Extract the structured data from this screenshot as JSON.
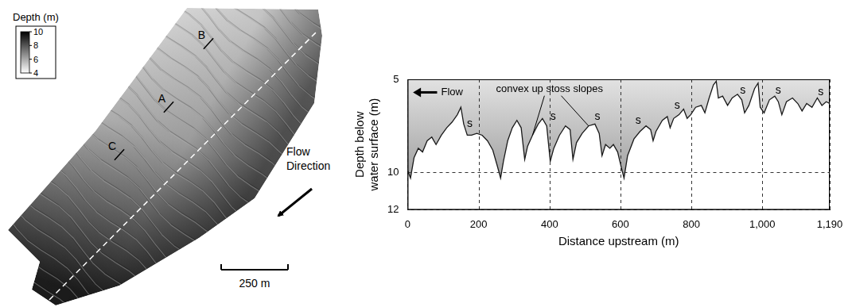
{
  "map": {
    "colorbar": {
      "title": "Depth (m)",
      "range": [
        4,
        10
      ],
      "ticks": [
        10,
        8,
        6,
        4
      ]
    },
    "transects": [
      "A",
      "B",
      "C"
    ],
    "flow_label": "Flow Direction",
    "scale_bar": "250 m"
  },
  "chart_data": {
    "type": "line",
    "x_label": "Distance upstream (m)",
    "y_label": "Depth below water surface (m)",
    "x": [
      0,
      8,
      18,
      30,
      42,
      55,
      68,
      80,
      95,
      110,
      125,
      140,
      150,
      158,
      168,
      180,
      195,
      210,
      225,
      240,
      252,
      262,
      270,
      282,
      295,
      308,
      320,
      330,
      338,
      352,
      368,
      380,
      392,
      402,
      412,
      428,
      445,
      458,
      466,
      476,
      492,
      510,
      528,
      540,
      548,
      558,
      570,
      580,
      592,
      602,
      610,
      620,
      638,
      655,
      672,
      685,
      692,
      700,
      718,
      732,
      740,
      750,
      765,
      778,
      788,
      798,
      812,
      828,
      838,
      850,
      862,
      870,
      876,
      888,
      902,
      915,
      930,
      942,
      950,
      962,
      978,
      988,
      994,
      1005,
      1020,
      1035,
      1045,
      1055,
      1068,
      1085,
      1100,
      1112,
      1125,
      1140,
      1155,
      1168,
      1180,
      1190
    ],
    "values": [
      9.9,
      10.3,
      9.2,
      8.7,
      8.9,
      8.3,
      8.1,
      8.5,
      8.0,
      7.6,
      7.3,
      6.9,
      6.5,
      7.4,
      8.0,
      8.0,
      7.9,
      8.0,
      8.3,
      8.8,
      9.6,
      10.3,
      9.4,
      8.3,
      7.6,
      7.2,
      7.6,
      9.3,
      8.6,
      8.0,
      7.4,
      7.1,
      7.5,
      9.4,
      8.7,
      8.0,
      7.5,
      7.7,
      9.3,
      8.4,
      7.9,
      7.5,
      7.4,
      7.9,
      9.1,
      8.5,
      8.7,
      8.5,
      8.9,
      9.7,
      10.3,
      9.1,
      8.2,
      7.8,
      7.5,
      7.7,
      8.3,
      7.8,
      7.2,
      7.0,
      7.6,
      7.1,
      6.9,
      6.6,
      7.1,
      6.9,
      6.5,
      6.4,
      6.8,
      6.0,
      5.3,
      5.1,
      6.0,
      5.9,
      6.4,
      6.0,
      5.8,
      6.1,
      6.8,
      6.4,
      5.5,
      5.2,
      6.5,
      6.8,
      6.1,
      5.9,
      6.2,
      6.9,
      6.2,
      6.0,
      6.3,
      6.7,
      6.3,
      6.5,
      6.0,
      6.4,
      6.2,
      6.3
    ],
    "color": "#1a1a1a",
    "xlim": [
      0,
      1190
    ],
    "xticks": [
      0,
      200,
      400,
      600,
      800,
      {
        "value": 1000,
        "label": "1,000"
      },
      {
        "value": 1190,
        "label": "1,190"
      }
    ],
    "ylim": [
      12,
      5
    ],
    "yticks": [
      5,
      10,
      12
    ],
    "grid": true,
    "annotations": [
      {
        "text": "Flow",
        "x": 125,
        "y": 5.7,
        "arrow_to": [
          15,
          5.7
        ]
      },
      {
        "text": "convex up stoss slopes",
        "x": 400,
        "y": 5.55,
        "targets": [
          [
            352,
            8.0
          ],
          [
            510,
            7.5
          ]
        ]
      },
      {
        "text": "s",
        "x": 175,
        "y": 7.4
      },
      {
        "text": "s",
        "x": 410,
        "y": 7.0
      },
      {
        "text": "s",
        "x": 535,
        "y": 7.0
      },
      {
        "text": "s",
        "x": 650,
        "y": 7.2
      },
      {
        "text": "s",
        "x": 760,
        "y": 6.4
      },
      {
        "text": "s",
        "x": 945,
        "y": 5.6
      },
      {
        "text": "s",
        "x": 1045,
        "y": 5.6
      },
      {
        "text": "s",
        "x": 1165,
        "y": 5.7
      }
    ]
  }
}
